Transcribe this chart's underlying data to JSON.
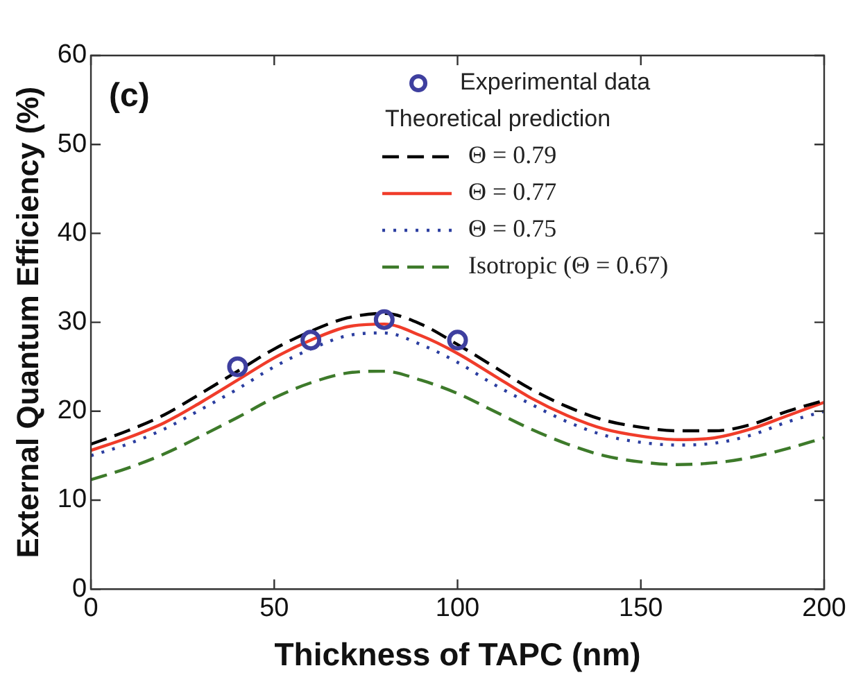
{
  "chart_data": {
    "type": "line",
    "xlabel": "Thickness of TAPC (nm)",
    "ylabel": "External Quantum Efficiency (%)",
    "annotations": [
      "(c)",
      "Theoretical prediction"
    ],
    "xlim": [
      0,
      200
    ],
    "xticks": [
      0,
      50,
      100,
      150,
      200
    ],
    "ylim": [
      0,
      60
    ],
    "yticks": [
      0,
      10,
      20,
      30,
      40,
      50,
      60
    ],
    "grid": false,
    "legend": "top right",
    "x": [
      0,
      10,
      20,
      30,
      40,
      50,
      60,
      70,
      80,
      90,
      100,
      110,
      120,
      130,
      140,
      150,
      160,
      170,
      180,
      190,
      200
    ],
    "series": [
      {
        "name": "Experimental data",
        "type": "scatter",
        "marker": "circle",
        "color": "#3e3f9f",
        "x": [
          40,
          60,
          80,
          100
        ],
        "values": [
          25,
          28,
          30.3,
          28
        ]
      },
      {
        "name": "Θ = 0.79",
        "color": "#000000",
        "line_style": "dashed",
        "marker": "none",
        "values": [
          16.3,
          17.8,
          19.6,
          22,
          24.5,
          27,
          29,
          30.5,
          31,
          29.8,
          27.5,
          25,
          22.5,
          20.5,
          19,
          18.2,
          17.8,
          17.8,
          18.5,
          20,
          21.2
        ]
      },
      {
        "name": "Θ = 0.77",
        "color": "#f03c2a",
        "line_style": "solid",
        "marker": "none",
        "values": [
          15.6,
          17,
          18.7,
          21,
          23.5,
          26,
          28,
          29.5,
          29.8,
          28.5,
          26.5,
          24,
          21.5,
          19.5,
          18,
          17.2,
          16.8,
          17,
          18,
          19.5,
          21
        ]
      },
      {
        "name": "Θ = 0.75",
        "color": "#2b3ea0",
        "line_style": "dotted",
        "marker": "none",
        "values": [
          15,
          16.3,
          18,
          20.2,
          22.5,
          25,
          27,
          28.5,
          28.8,
          27.5,
          25.5,
          23,
          20.8,
          18.8,
          17.3,
          16.5,
          16.2,
          16.4,
          17.3,
          18.8,
          20
        ]
      },
      {
        "name": "Isotropic (Θ = 0.67)",
        "color": "#3d7a2a",
        "line_style": "dashed",
        "marker": "none",
        "values": [
          12.3,
          13.6,
          15.2,
          17.2,
          19.3,
          21.5,
          23.2,
          24.3,
          24.5,
          23.5,
          22,
          20,
          18,
          16.3,
          15,
          14.3,
          14,
          14.2,
          14.8,
          15.8,
          17
        ]
      }
    ]
  }
}
